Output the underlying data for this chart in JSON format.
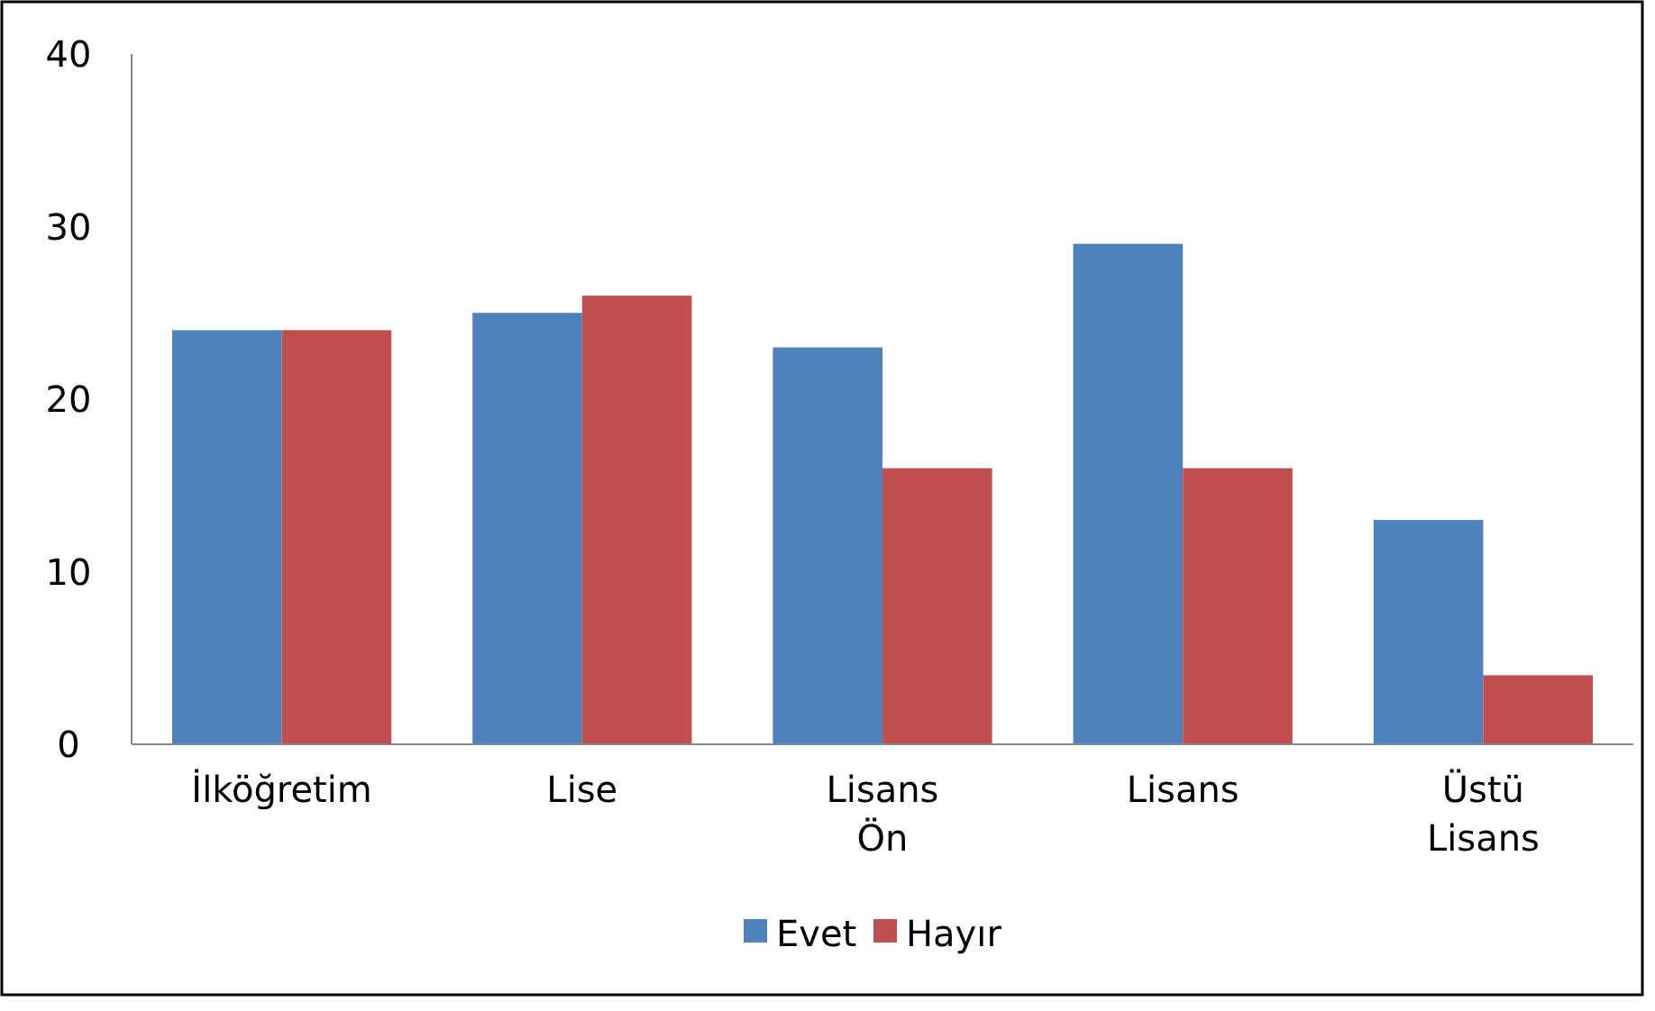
{
  "chart_data": {
    "type": "bar",
    "categories": [
      "İlköğretim",
      "Lise",
      "Lisans Ön",
      "Lisans",
      "Üstü Lisans"
    ],
    "series": [
      {
        "name": "Evet",
        "color": "#4f81bd",
        "values": [
          24,
          25,
          23,
          29,
          13
        ]
      },
      {
        "name": "Hayır",
        "color": "#c0504d",
        "values": [
          24,
          26,
          16,
          16,
          4
        ]
      }
    ],
    "ylim": [
      0,
      40
    ],
    "yticks": [
      0,
      10,
      20,
      30,
      40
    ],
    "grid": false,
    "legend": "bottom"
  }
}
